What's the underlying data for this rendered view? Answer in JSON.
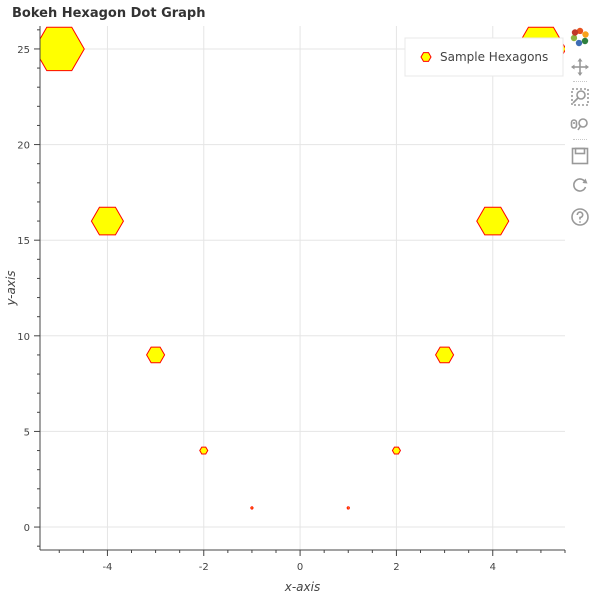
{
  "chart_data": {
    "type": "scatter",
    "marker": "hexagon",
    "title": "Bokeh Hexagon Dot Graph",
    "xlabel": "x-axis",
    "ylabel": "y-axis",
    "xlim": [
      -5.4,
      5.5
    ],
    "ylim": [
      -1.2,
      26.2
    ],
    "xticks": [
      -4,
      -2,
      0,
      2,
      4
    ],
    "yticks": [
      0,
      5,
      10,
      15,
      20,
      25
    ],
    "grid": true,
    "legend_position": "top-right",
    "series": [
      {
        "name": "Sample Hexagons",
        "fill_color": "#ffff00",
        "line_color": "#ff0000",
        "points": [
          {
            "x": -5,
            "y": 25,
            "size": 25
          },
          {
            "x": -4,
            "y": 16,
            "size": 16
          },
          {
            "x": -3,
            "y": 9,
            "size": 9
          },
          {
            "x": -2,
            "y": 4,
            "size": 4
          },
          {
            "x": -1,
            "y": 1,
            "size": 1
          },
          {
            "x": 1,
            "y": 1,
            "size": 1
          },
          {
            "x": 2,
            "y": 4,
            "size": 4
          },
          {
            "x": 3,
            "y": 9,
            "size": 9
          },
          {
            "x": 4,
            "y": 16,
            "size": 16
          },
          {
            "x": 5,
            "y": 25,
            "size": 25
          }
        ]
      }
    ]
  },
  "toolbar": {
    "tools": [
      {
        "icon": "bokeh-logo-icon",
        "label": "Bokeh"
      },
      {
        "icon": "pan-icon",
        "label": "Pan"
      },
      {
        "icon": "box-zoom-icon",
        "label": "Box Zoom"
      },
      {
        "icon": "wheel-zoom-icon",
        "label": "Wheel Zoom"
      },
      {
        "icon": "save-icon",
        "label": "Save"
      },
      {
        "icon": "reset-icon",
        "label": "Reset"
      },
      {
        "icon": "help-icon",
        "label": "Help"
      }
    ]
  },
  "colors": {
    "grid": "#e5e5e5",
    "axis": "#444444",
    "marker_fill": "#ffff00",
    "marker_line": "#ff0000",
    "toolbar_icon": "#999999"
  }
}
